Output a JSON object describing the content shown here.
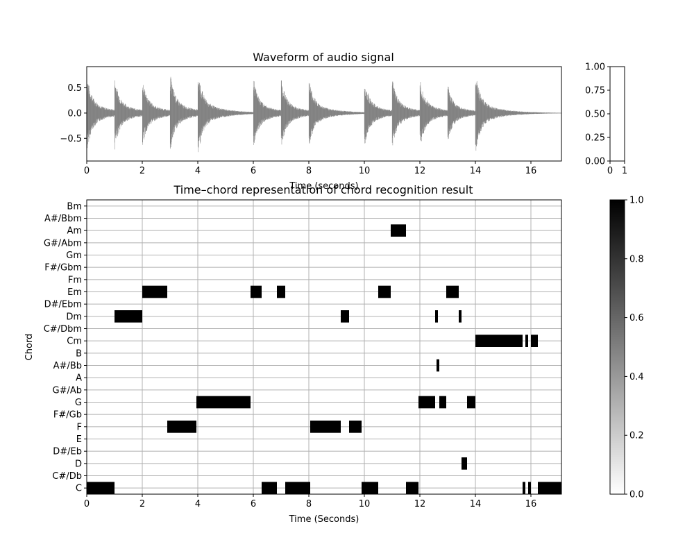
{
  "chart_data": [
    {
      "type": "line",
      "title": "Waveform of audio signal",
      "xlabel": "Time (seconds)",
      "ylabel": "",
      "xlim": [
        0,
        17.1
      ],
      "ylim": [
        -0.95,
        0.92
      ],
      "xticks": [
        "0",
        "2",
        "4",
        "6",
        "8",
        "10",
        "12",
        "14",
        "16"
      ],
      "yticks": [
        "0.5",
        "0.0",
        "−0.5"
      ],
      "line_color": "#808080",
      "grid": false,
      "note_onsets": [
        {
          "t": 0.0,
          "amp": 0.8
        },
        {
          "t": 1.0,
          "amp": 0.75
        },
        {
          "t": 2.0,
          "amp": 0.72
        },
        {
          "t": 3.0,
          "amp": 0.82
        },
        {
          "t": 4.0,
          "amp": 0.88
        },
        {
          "t": 6.0,
          "amp": 0.73
        },
        {
          "t": 7.0,
          "amp": 0.72
        },
        {
          "t": 8.0,
          "amp": 0.72
        },
        {
          "t": 10.0,
          "amp": 0.7
        },
        {
          "t": 11.0,
          "amp": 0.72
        },
        {
          "t": 12.0,
          "amp": 0.73
        },
        {
          "t": 13.0,
          "amp": 0.6
        },
        {
          "t": 14.0,
          "amp": 0.85
        }
      ],
      "colorbar_axis": {
        "ylim": [
          0,
          1
        ],
        "yticks": [
          "0.00",
          "0.25",
          "0.50",
          "0.75",
          "1.00"
        ],
        "xticks": [
          "0",
          "1"
        ]
      }
    },
    {
      "type": "heatmap",
      "title": "Time–chord representation of chord recognition result",
      "xlabel": "Time (Seconds)",
      "ylabel": "Chord",
      "xlim": [
        0,
        17.1
      ],
      "xticks": [
        "0",
        "2",
        "4",
        "6",
        "8",
        "10",
        "12",
        "14",
        "16"
      ],
      "chords": [
        "C",
        "C#/Db",
        "D",
        "D#/Eb",
        "E",
        "F",
        "F#/Gb",
        "G",
        "G#/Ab",
        "A",
        "A#/Bb",
        "B",
        "Cm",
        "C#/Dbm",
        "Dm",
        "D#/Ebm",
        "Em",
        "Fm",
        "F#/Gbm",
        "Gm",
        "G#/Abm",
        "Am",
        "A#/Bbm",
        "Bm"
      ],
      "grid": true,
      "segments": [
        {
          "chord": "C",
          "start": 0.0,
          "end": 1.0
        },
        {
          "chord": "Dm",
          "start": 1.0,
          "end": 2.0
        },
        {
          "chord": "Em",
          "start": 2.0,
          "end": 2.9
        },
        {
          "chord": "F",
          "start": 2.9,
          "end": 3.95
        },
        {
          "chord": "G",
          "start": 3.95,
          "end": 5.9
        },
        {
          "chord": "Em",
          "start": 5.9,
          "end": 6.3
        },
        {
          "chord": "C",
          "start": 6.3,
          "end": 6.85
        },
        {
          "chord": "Em",
          "start": 6.85,
          "end": 7.15
        },
        {
          "chord": "C",
          "start": 7.15,
          "end": 8.05
        },
        {
          "chord": "F",
          "start": 8.05,
          "end": 9.15
        },
        {
          "chord": "Dm",
          "start": 9.15,
          "end": 9.45
        },
        {
          "chord": "F",
          "start": 9.45,
          "end": 9.9
        },
        {
          "chord": "C",
          "start": 9.9,
          "end": 10.5
        },
        {
          "chord": "Em",
          "start": 10.5,
          "end": 10.95
        },
        {
          "chord": "Am",
          "start": 10.95,
          "end": 11.5
        },
        {
          "chord": "C",
          "start": 11.5,
          "end": 11.95
        },
        {
          "chord": "G",
          "start": 11.95,
          "end": 12.55
        },
        {
          "chord": "Dm",
          "start": 12.55,
          "end": 12.65
        },
        {
          "chord": "A#/Bb",
          "start": 12.6,
          "end": 12.7
        },
        {
          "chord": "G",
          "start": 12.7,
          "end": 12.95
        },
        {
          "chord": "Em",
          "start": 12.95,
          "end": 13.4
        },
        {
          "chord": "Dm",
          "start": 13.4,
          "end": 13.5
        },
        {
          "chord": "D",
          "start": 13.5,
          "end": 13.7
        },
        {
          "chord": "G",
          "start": 13.7,
          "end": 14.0
        },
        {
          "chord": "Cm",
          "start": 14.0,
          "end": 15.7
        },
        {
          "chord": "C",
          "start": 15.7,
          "end": 15.8
        },
        {
          "chord": "Cm",
          "start": 15.8,
          "end": 15.9
        },
        {
          "chord": "C",
          "start": 15.9,
          "end": 16.0
        },
        {
          "chord": "Cm",
          "start": 16.0,
          "end": 16.25
        },
        {
          "chord": "C",
          "start": 16.25,
          "end": 17.1
        }
      ],
      "colorbar": {
        "range": [
          0,
          1
        ],
        "ticks": [
          "0.0",
          "0.2",
          "0.4",
          "0.6",
          "0.8",
          "1.0"
        ],
        "colors": [
          "#ffffff",
          "#000000"
        ]
      }
    }
  ]
}
